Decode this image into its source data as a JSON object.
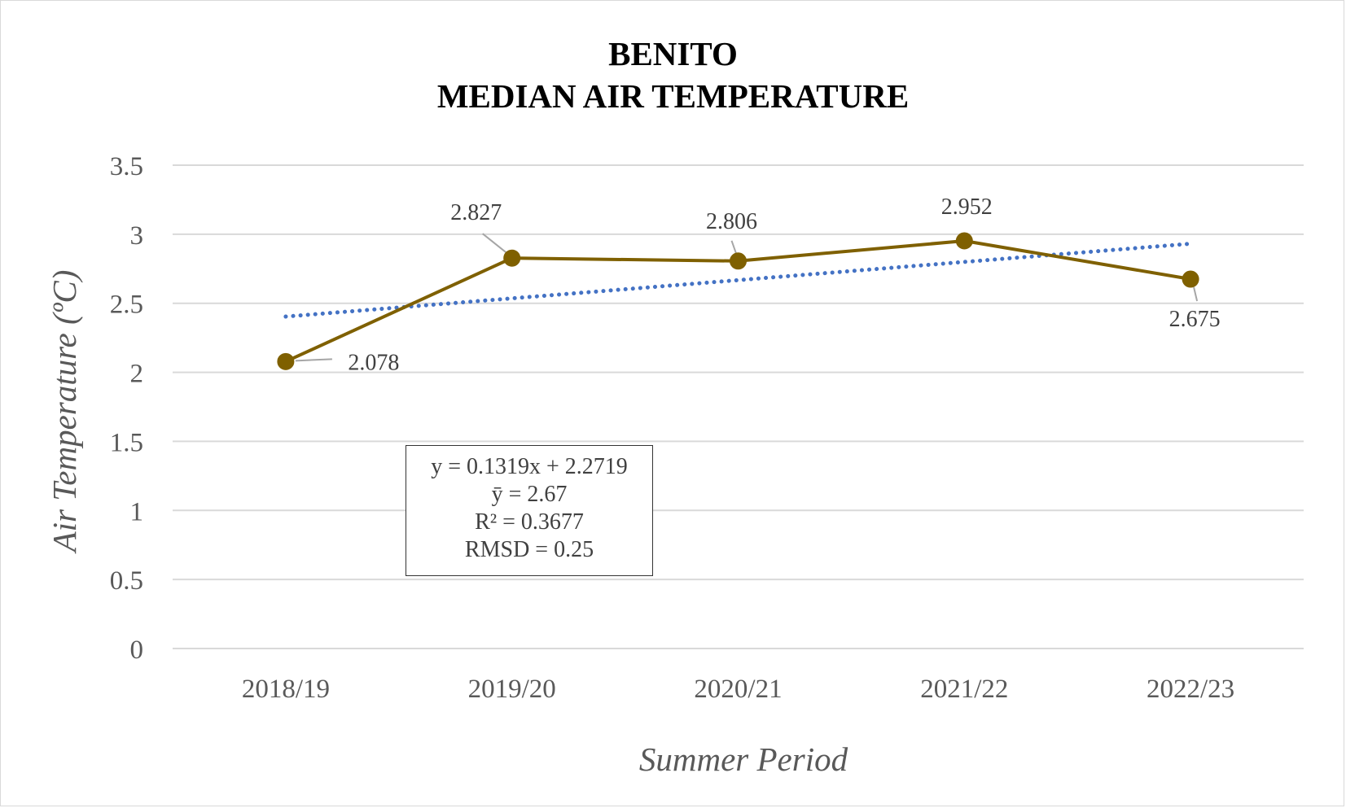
{
  "chart_data": {
    "type": "line",
    "title": "BENITO",
    "subtitle": "MEDIAN AIR TEMPERATURE",
    "xlabel": "Summer Period",
    "ylabel": "Air Temperature (ºC)",
    "ylim": [
      0,
      3.5
    ],
    "yticks": [
      "0",
      "0.5",
      "1",
      "1.5",
      "2",
      "2.5",
      "3",
      "3.5"
    ],
    "grid": true,
    "categories": [
      "2018/19",
      "2019/20",
      "2020/21",
      "2021/22",
      "2022/23"
    ],
    "series": [
      {
        "values": [
          2.078,
          2.827,
          2.806,
          2.952,
          2.675
        ],
        "labels": [
          "2.078",
          "2.827",
          "2.806",
          "2.952",
          "2.675"
        ],
        "color": "#7f6000"
      }
    ],
    "trendline": {
      "type": "linear",
      "slope": 0.1319,
      "intercept": 2.2719,
      "style": "dotted",
      "color": "#4472c4"
    },
    "annotations": [
      "y = 0.1319x + 2.2719",
      "ȳ = 2.67",
      "R² = 0.3677",
      "RMSD = 0.25"
    ]
  }
}
